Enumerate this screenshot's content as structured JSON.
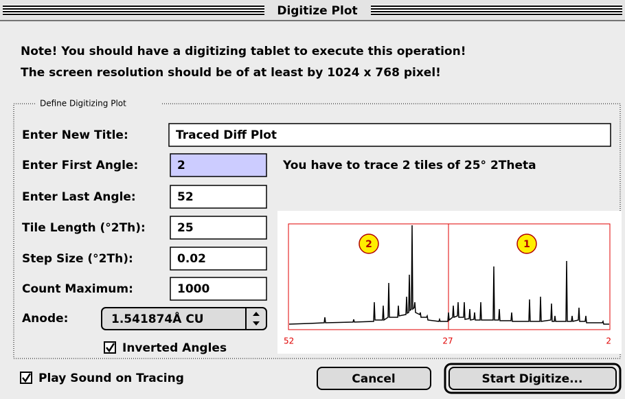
{
  "window": {
    "title": "Digitize Plot"
  },
  "notes": [
    "Note! You should have a digitizing tablet to execute this operation!",
    "The screen resolution should be of at least by 1024 x 768 pixel!"
  ],
  "group": {
    "legend": "Define Digitizing Plot"
  },
  "fields": [
    {
      "label": "Enter New Title:",
      "value": "Traced Diff Plot"
    },
    {
      "label": "Enter First Angle:",
      "value": "2"
    },
    {
      "label": "Enter Last Angle:",
      "value": "52"
    },
    {
      "label": "Tile Length (°2Th):",
      "value": "25"
    },
    {
      "label": "Step Size (°2Th):",
      "value": "0.02"
    },
    {
      "label": "Count Maximum:",
      "value": "1000"
    }
  ],
  "anode": {
    "label": "Anode:",
    "value": "1.541874Å CU"
  },
  "inverted": {
    "label": "Inverted Angles",
    "checked": true
  },
  "info": "You have to trace 2 tiles of 25° 2Theta",
  "preview": {
    "tiles": [
      "2",
      "1"
    ],
    "axis_labels": [
      "52",
      "27",
      "2"
    ]
  },
  "play_sound": {
    "label": "Play Sound on Tracing",
    "checked": true
  },
  "buttons": [
    "Cancel",
    "Start Digitize..."
  ]
}
